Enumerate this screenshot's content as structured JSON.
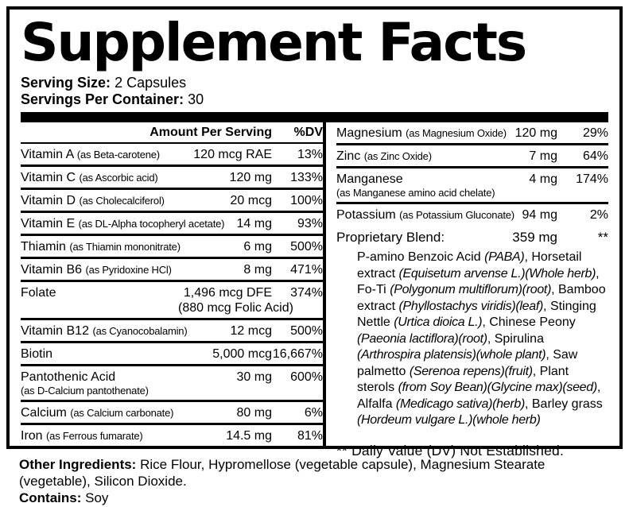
{
  "colors": {
    "ink": "#000000",
    "background": "#ffffff"
  },
  "panel": {
    "title": "Supplement Facts",
    "serving_size_label": "Serving Size:",
    "serving_size_value": "2 Capsules",
    "servings_per_container_label": "Servings Per Container:",
    "servings_per_container_value": "30"
  },
  "table": {
    "amount_header": "Amount Per Serving",
    "dv_header": "%DV",
    "left_rows": [
      {
        "name": "Vitamin A",
        "form": "(as Beta-carotene)",
        "amount": "120 mcg RAE",
        "dv": "13%"
      },
      {
        "name": "Vitamin C",
        "form": "(as Ascorbic acid)",
        "amount": "120 mg",
        "dv": "133%"
      },
      {
        "name": "Vitamin D",
        "form": "(as Cholecalciferol)",
        "amount": "20 mcg",
        "dv": "100%"
      },
      {
        "name": "Vitamin E",
        "form": "(as DL-Alpha tocopheryl acetate)",
        "amount": "14 mg",
        "dv": "93%"
      },
      {
        "name": "Thiamin",
        "form": "(as Thiamin mononitrate)",
        "amount": "6 mg",
        "dv": "500%"
      },
      {
        "name": "Vitamin B6",
        "form": "(as Pyridoxine HCl)",
        "amount": "8 mg",
        "dv": "471%"
      },
      {
        "name": "Folate",
        "form": "",
        "amount": "1,496 mcg DFE",
        "amount2": "(880 mcg Folic Acid)",
        "dv": "374%"
      },
      {
        "name": "Vitamin B12",
        "form": "(as Cyanocobalamin)",
        "amount": "12 mcg",
        "dv": "500%"
      },
      {
        "name": "Biotin",
        "form": "",
        "amount": "5,000 mcg",
        "dv": "16,667%"
      },
      {
        "name": "Pantothenic Acid",
        "form2": "(as D-Calcium pantothenate)",
        "amount": "30 mg",
        "dv": "600%"
      },
      {
        "name": "Calcium",
        "form": "(as Calcium carbonate)",
        "amount": "80 mg",
        "dv": "6%"
      },
      {
        "name": "Iron",
        "form": "(as Ferrous fumarate)",
        "amount": "14.5 mg",
        "dv": "81%"
      }
    ],
    "right_rows": [
      {
        "name": "Magnesium",
        "form": "(as Magnesium Oxide)",
        "amount": "120 mg",
        "dv": "29%"
      },
      {
        "name": "Zinc",
        "form": "(as Zinc Oxide)",
        "amount": "7 mg",
        "dv": "64%"
      },
      {
        "name": "Manganese",
        "form2": "(as Manganese amino acid chelate)",
        "amount": "4 mg",
        "dv": "174%"
      },
      {
        "name": "Potassium",
        "form": "(as Potassium Gluconate)",
        "amount": "94 mg",
        "dv": "2%"
      }
    ]
  },
  "blend": {
    "label": "Proprietary Blend:",
    "amount": "359 mg",
    "dv": "**",
    "ingredients": [
      {
        "text": "P-amino Benzoic Acid ",
        "italic": false
      },
      {
        "text": "(PABA)",
        "italic": true
      },
      {
        "text": ", Horsetail extract ",
        "italic": false
      },
      {
        "text": "(Equisetum arvense L.)(Whole herb)",
        "italic": true
      },
      {
        "text": ", Fo-Ti ",
        "italic": false
      },
      {
        "text": "(Polygonum multiflorum)(root)",
        "italic": true
      },
      {
        "text": ", Bamboo extract ",
        "italic": false
      },
      {
        "text": "(Phyllostachys viridis)(leaf)",
        "italic": true
      },
      {
        "text": ", Stinging Nettle ",
        "italic": false
      },
      {
        "text": "(Urtica dioica L.)",
        "italic": true
      },
      {
        "text": ", Chinese Peony ",
        "italic": false
      },
      {
        "text": "(Paeonia lactiflora)(root)",
        "italic": true
      },
      {
        "text": ", Spirulina ",
        "italic": false
      },
      {
        "text": "(Arthrospira platensis)(whole plant)",
        "italic": true
      },
      {
        "text": ", Saw palmetto ",
        "italic": false
      },
      {
        "text": "(Serenoa repens)(fruit)",
        "italic": true
      },
      {
        "text": ", Plant sterols ",
        "italic": false
      },
      {
        "text": "(from Soy Bean)(Glycine max)(seed)",
        "italic": true
      },
      {
        "text": ", Alfalfa ",
        "italic": false
      },
      {
        "text": "(Medicago sativa)(herb)",
        "italic": true
      },
      {
        "text": ", Barley grass ",
        "italic": false
      },
      {
        "text": "(Hordeum vulgare L.)(whole herb)",
        "italic": true
      }
    ]
  },
  "footnote": "** Daily Value (DV) Not Established.",
  "other_ingredients": {
    "label": "Other Ingredients:",
    "line1": "Rice Flour, Hypromellose (vegetable capsule), Magnesium Stearate",
    "line2": "(vegetable), Silicon Dioxide.",
    "contains_label": "Contains:",
    "contains_value": "Soy"
  }
}
